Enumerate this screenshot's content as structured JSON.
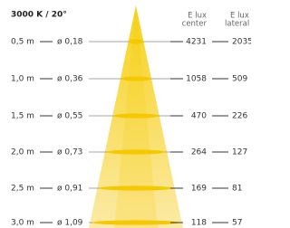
{
  "title": "3000 K / 20°",
  "headers": {
    "center": [
      "E lux",
      "center"
    ],
    "lateral": [
      "E lux",
      "lateral"
    ]
  },
  "rows": [
    {
      "distance": "0,5 m",
      "diameter": "ø 0,18",
      "center": "4231",
      "lateral": "2035"
    },
    {
      "distance": "1,0 m",
      "diameter": "ø 0,36",
      "center": "1058",
      "lateral": "509"
    },
    {
      "distance": "1,5 m",
      "diameter": "ø 0,55",
      "center": "470",
      "lateral": "226"
    },
    {
      "distance": "2,0 m",
      "diameter": "ø 0,73",
      "center": "264",
      "lateral": "127"
    },
    {
      "distance": "2,5 m",
      "diameter": "ø 0,91",
      "center": "169",
      "lateral": "81"
    },
    {
      "distance": "3,0 m",
      "diameter": "ø 1,09",
      "center": "118",
      "lateral": "57"
    }
  ]
}
